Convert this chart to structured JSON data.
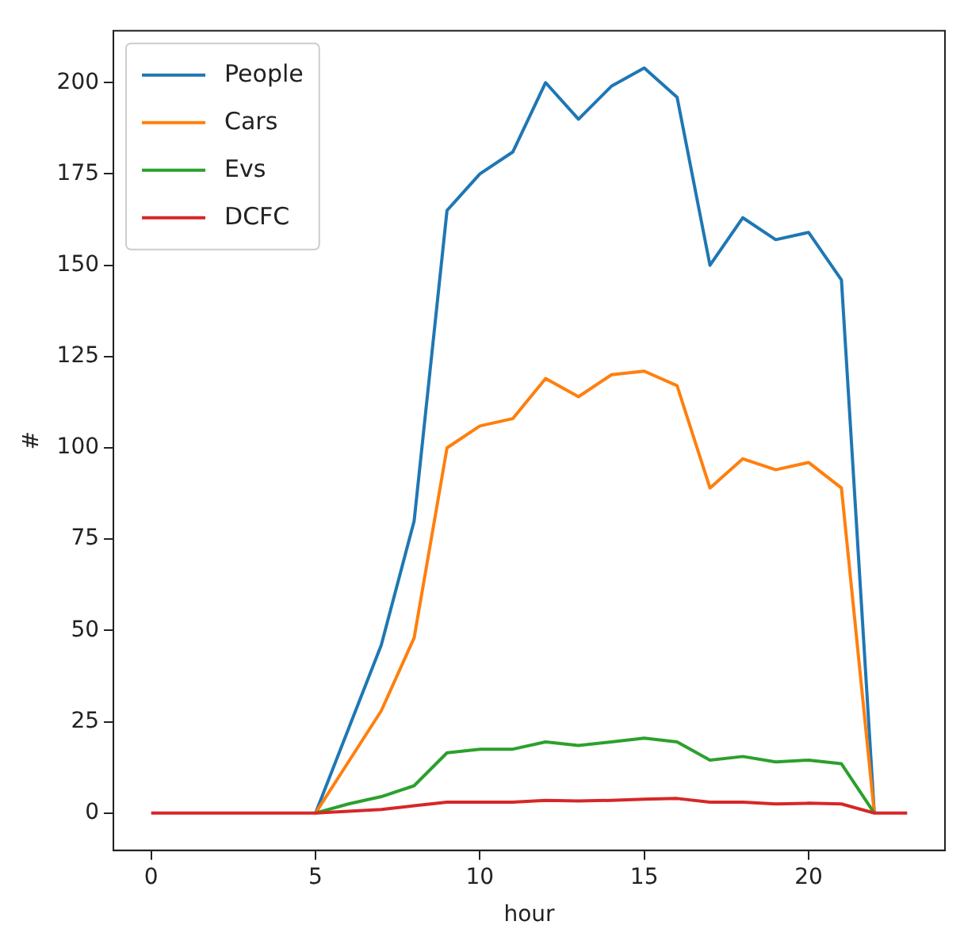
{
  "chart_data": {
    "type": "line",
    "xlabel": "hour",
    "ylabel": "#",
    "x": [
      0,
      1,
      2,
      3,
      4,
      5,
      6,
      7,
      8,
      9,
      10,
      11,
      12,
      13,
      14,
      15,
      16,
      17,
      18,
      19,
      20,
      21,
      22,
      23
    ],
    "series": [
      {
        "name": "People",
        "color": "#1f77b4",
        "values": [
          null,
          null,
          null,
          null,
          null,
          0,
          23,
          46,
          80,
          165,
          175,
          181,
          200,
          190,
          199,
          204,
          196,
          150,
          163,
          157,
          159,
          146,
          0,
          null
        ]
      },
      {
        "name": "Cars",
        "color": "#ff7f0e",
        "values": [
          null,
          null,
          null,
          null,
          null,
          0,
          14,
          28,
          48,
          100,
          106,
          108,
          119,
          114,
          120,
          121,
          117,
          89,
          97,
          94,
          96,
          89,
          0,
          null
        ]
      },
      {
        "name": "Evs",
        "color": "#2ca02c",
        "values": [
          null,
          null,
          null,
          null,
          null,
          0,
          2.5,
          4.5,
          7.5,
          16.5,
          17.5,
          17.5,
          19.5,
          18.5,
          19.5,
          20.5,
          19.5,
          14.5,
          15.5,
          14,
          14.5,
          13.5,
          0,
          null
        ]
      },
      {
        "name": "DCFC",
        "color": "#d62728",
        "values": [
          0,
          0,
          0,
          0,
          0,
          0,
          0.5,
          1,
          2,
          3,
          3,
          3,
          3.5,
          3.3,
          3.5,
          3.8,
          4,
          3,
          3,
          2.5,
          2.7,
          2.5,
          0,
          0
        ]
      }
    ],
    "xlim": [
      -1.15,
      24.15
    ],
    "xticks": [
      0,
      5,
      10,
      15,
      20
    ],
    "ylim": [
      -10.2,
      214.2
    ],
    "yticks": [
      0,
      25,
      50,
      75,
      100,
      125,
      150,
      175,
      200
    ],
    "grid": false,
    "legend": "top left",
    "marker": "none",
    "line_style": "solid"
  }
}
